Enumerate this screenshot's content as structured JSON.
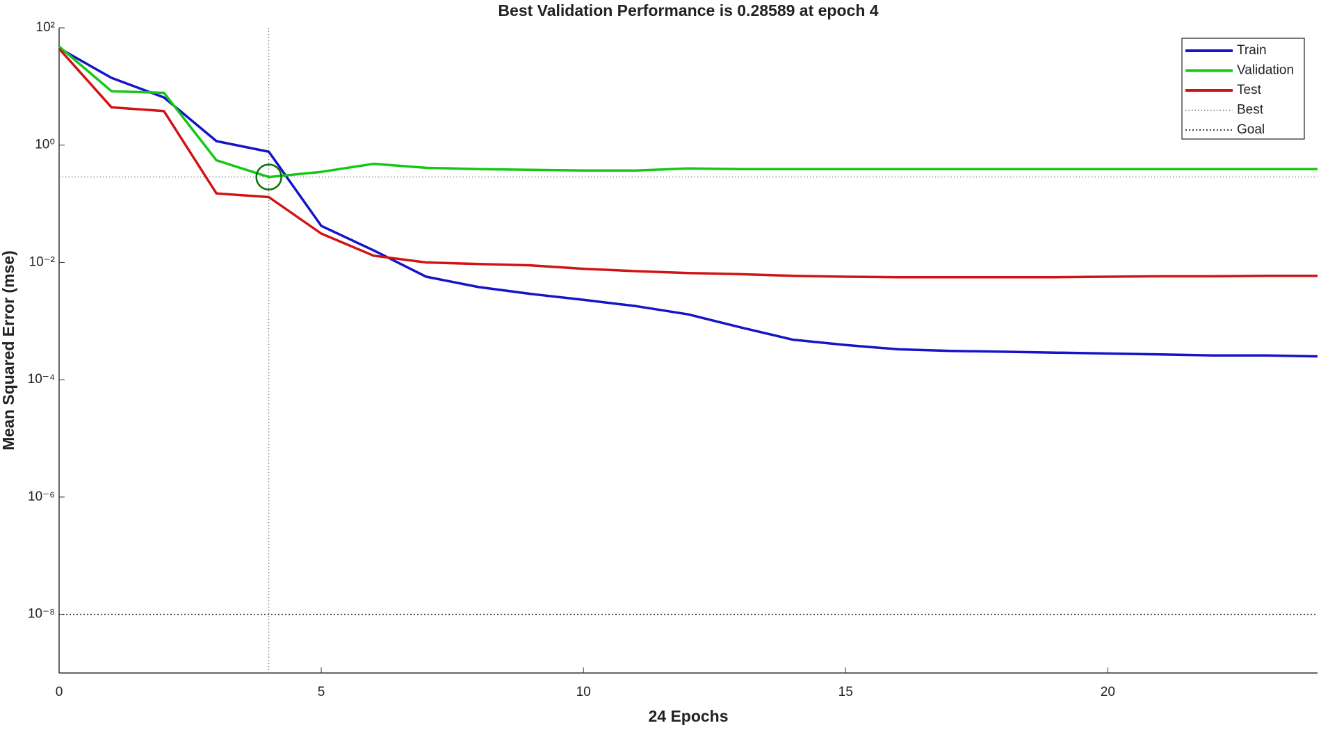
{
  "chart_data": {
    "type": "line",
    "title": "Best Validation Performance is 0.28589 at epoch 4",
    "xlabel": "24 Epochs",
    "ylabel": "Mean Squared Error  (mse)",
    "x": [
      0,
      1,
      2,
      3,
      4,
      5,
      6,
      7,
      8,
      9,
      10,
      11,
      12,
      13,
      14,
      15,
      16,
      17,
      18,
      19,
      20,
      21,
      22,
      23,
      24
    ],
    "series": [
      {
        "name": "Train",
        "color": "#1414c8",
        "values": [
          45,
          14,
          6.5,
          1.17,
          0.77,
          0.042,
          0.016,
          0.0057,
          0.0038,
          0.0029,
          0.0023,
          0.0018,
          0.0013,
          0.00078,
          0.00048,
          0.00039,
          0.00033,
          0.00031,
          0.0003,
          0.00029,
          0.00028,
          0.00027,
          0.00026,
          0.00026,
          0.00025
        ]
      },
      {
        "name": "Validation",
        "color": "#14c814",
        "values": [
          48,
          8.3,
          7.8,
          0.55,
          0.28589,
          0.35,
          0.48,
          0.41,
          0.39,
          0.38,
          0.37,
          0.37,
          0.4,
          0.39,
          0.39,
          0.39,
          0.39,
          0.39,
          0.39,
          0.39,
          0.39,
          0.39,
          0.39,
          0.39,
          0.39
        ]
      },
      {
        "name": "Test",
        "color": "#d01414",
        "values": [
          44,
          4.4,
          3.8,
          0.15,
          0.13,
          0.031,
          0.013,
          0.01,
          0.0094,
          0.0089,
          0.0078,
          0.0071,
          0.0066,
          0.0063,
          0.0059,
          0.0057,
          0.0056,
          0.0056,
          0.0056,
          0.0056,
          0.0057,
          0.0058,
          0.0058,
          0.0059,
          0.0059
        ]
      }
    ],
    "best": {
      "name": "Best",
      "x": 4,
      "y": 0.28589,
      "color": "#0a6e0a"
    },
    "goal": {
      "name": "Goal",
      "value": 1e-08
    },
    "xlim": [
      0,
      24
    ],
    "xticks": [
      0,
      5,
      10,
      15,
      20
    ],
    "ylim": [
      1e-09,
      100
    ],
    "yscale": "log",
    "yticks": [
      {
        "value": 100,
        "label": "10²"
      },
      {
        "value": 1,
        "label": "10⁰"
      },
      {
        "value": 0.01,
        "label": "10⁻²"
      },
      {
        "value": 0.0001,
        "label": "10⁻⁴"
      },
      {
        "value": 1e-06,
        "label": "10⁻⁶"
      },
      {
        "value": 1e-08,
        "label": "10⁻⁸"
      }
    ],
    "grid": false,
    "legend": "upper right"
  }
}
